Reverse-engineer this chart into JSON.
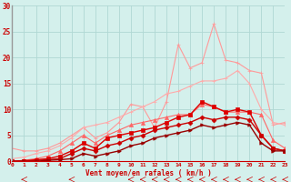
{
  "xlabel": "Vent moyen/en rafales ( km/h )",
  "xlim": [
    0,
    23
  ],
  "ylim": [
    0,
    30
  ],
  "xticks": [
    0,
    1,
    2,
    3,
    4,
    5,
    6,
    7,
    8,
    9,
    10,
    11,
    12,
    13,
    14,
    15,
    16,
    17,
    18,
    19,
    20,
    21,
    22,
    23
  ],
  "yticks": [
    0,
    5,
    10,
    15,
    20,
    25,
    30
  ],
  "background_color": "#d4f0ec",
  "grid_color": "#b0d8d4",
  "series": [
    {
      "color": "#ff9999",
      "linewidth": 0.8,
      "marker": "+",
      "markersize": 3,
      "y": [
        2.5,
        2.0,
        2.0,
        2.5,
        3.5,
        5.0,
        6.5,
        4.5,
        5.5,
        7.5,
        11.0,
        10.5,
        6.5,
        11.5,
        22.5,
        18.0,
        19.0,
        26.5,
        19.5,
        19.0,
        17.5,
        17.0,
        7.0,
        7.5
      ]
    },
    {
      "color": "#ffaaaa",
      "linewidth": 0.8,
      "marker": "+",
      "markersize": 3,
      "y": [
        0.5,
        0.8,
        1.5,
        2.0,
        3.0,
        4.5,
        6.5,
        7.0,
        7.5,
        8.5,
        9.5,
        10.5,
        11.5,
        13.0,
        13.5,
        14.5,
        15.5,
        15.5,
        16.0,
        17.5,
        15.0,
        10.0,
        7.5,
        7.0
      ]
    },
    {
      "color": "#ff6666",
      "linewidth": 0.8,
      "marker": "^",
      "markersize": 3,
      "y": [
        0.0,
        0.2,
        0.5,
        1.0,
        2.0,
        3.5,
        5.0,
        3.5,
        5.0,
        6.0,
        7.0,
        7.5,
        8.0,
        8.5,
        9.0,
        9.0,
        11.0,
        10.5,
        9.5,
        9.5,
        9.5,
        9.0,
        4.0,
        2.5
      ]
    },
    {
      "color": "#dd0000",
      "linewidth": 1.0,
      "marker": "s",
      "markersize": 2.5,
      "y": [
        0.0,
        0.1,
        0.3,
        0.5,
        1.0,
        2.0,
        3.5,
        2.5,
        4.5,
        5.0,
        5.5,
        6.0,
        6.5,
        7.5,
        8.5,
        9.0,
        11.5,
        10.5,
        9.5,
        10.0,
        9.5,
        5.0,
        2.5,
        2.0
      ]
    },
    {
      "color": "#cc0000",
      "linewidth": 1.0,
      "marker": "D",
      "markersize": 2.5,
      "y": [
        0.0,
        0.0,
        0.2,
        0.3,
        0.5,
        1.5,
        2.5,
        2.0,
        3.0,
        3.5,
        4.5,
        5.0,
        6.0,
        6.5,
        7.0,
        7.5,
        8.5,
        8.0,
        8.5,
        8.5,
        8.0,
        5.0,
        2.5,
        2.0
      ]
    },
    {
      "color": "#990000",
      "linewidth": 1.0,
      "marker": ">",
      "markersize": 2.5,
      "y": [
        0.0,
        0.0,
        0.0,
        0.2,
        0.3,
        0.5,
        1.5,
        1.0,
        1.5,
        2.0,
        3.0,
        3.5,
        4.5,
        5.0,
        5.5,
        6.0,
        7.0,
        6.5,
        7.0,
        7.5,
        7.0,
        3.5,
        2.0,
        2.0
      ]
    }
  ],
  "wind_arrows": [
    1,
    5,
    10,
    11,
    12,
    13,
    14,
    15,
    16,
    17,
    18,
    19,
    20,
    21,
    22,
    23
  ]
}
